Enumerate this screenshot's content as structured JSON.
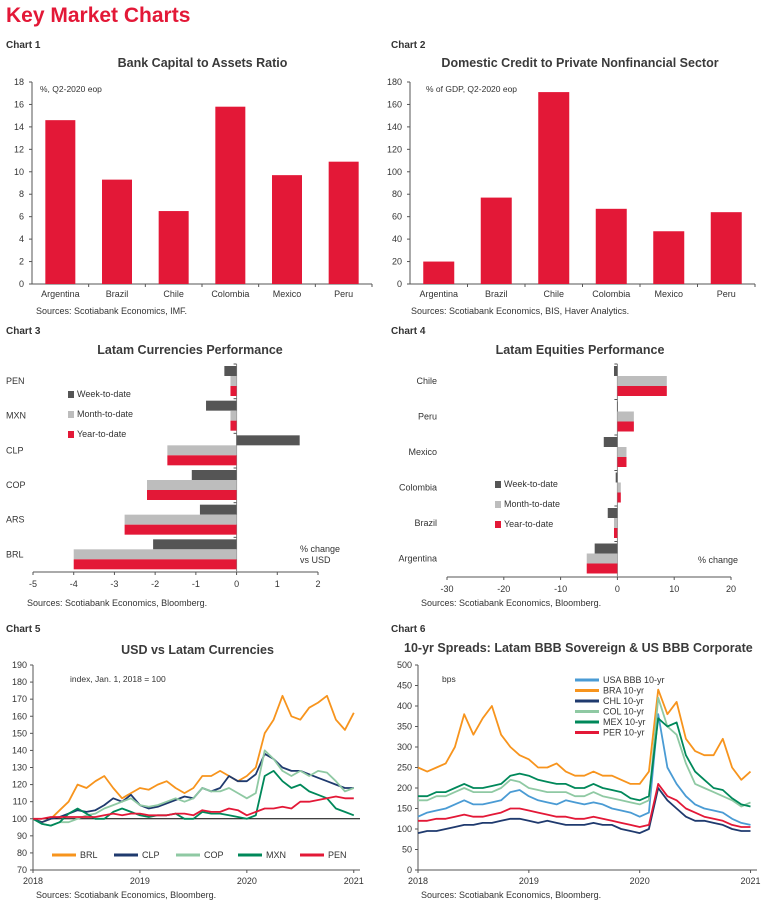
{
  "page_title": "Key Market Charts",
  "colors": {
    "red": "#e31837",
    "dark": "#555555",
    "light": "#bdbdbd",
    "orange": "#f7941d",
    "lightblue": "#4a9bd4",
    "navy": "#1f3a6e",
    "palegreen": "#8fc9a3",
    "green": "#00885a",
    "black": "#000000"
  },
  "chart_data": [
    {
      "id": "c1",
      "chart_label": "Chart 1",
      "type": "bar",
      "title": "Bank Capital to Assets Ratio",
      "annotation": "%, Q2-2020 eop",
      "source": "Sources: Scotiabank Economics, IMF.",
      "categories": [
        "Argentina",
        "Brazil",
        "Chile",
        "Colombia",
        "Mexico",
        "Peru"
      ],
      "values": [
        14.6,
        9.3,
        6.5,
        15.8,
        9.7,
        10.9
      ],
      "ylim": [
        0,
        18
      ],
      "ystep": 2,
      "yticks": [
        "0",
        "2",
        "4",
        "6",
        "8",
        "10",
        "12",
        "14",
        "16",
        "18"
      ]
    },
    {
      "id": "c2",
      "chart_label": "Chart 2",
      "type": "bar",
      "title": "Domestic Credit to Private Nonfinancial Sector",
      "annotation": "% of GDP, Q2-2020 eop",
      "source": "Sources: Scotiabank Economics, BIS, Haver Analytics.",
      "categories": [
        "Argentina",
        "Brazil",
        "Chile",
        "Colombia",
        "Mexico",
        "Peru"
      ],
      "values": [
        20,
        77,
        171,
        67,
        47,
        64
      ],
      "ylim": [
        0,
        180
      ],
      "ystep": 20,
      "yticks": [
        "0",
        "20",
        "40",
        "60",
        "80",
        "100",
        "120",
        "140",
        "160",
        "180"
      ]
    },
    {
      "id": "c3",
      "chart_label": "Chart 3",
      "type": "hbar",
      "title": "Latam Currencies Performance",
      "annotation": "% change vs USD",
      "annotation_lines": [
        "% change",
        "vs USD"
      ],
      "source": "Sources: Scotiabank Economics, Bloomberg.",
      "categories": [
        "PEN",
        "MXN",
        "CLP",
        "COP",
        "ARS",
        "BRL"
      ],
      "series": [
        {
          "name": "Week-to-date",
          "values": [
            -0.3,
            -0.75,
            1.55,
            -1.1,
            -0.9,
            -2.05
          ]
        },
        {
          "name": "Month-to-date",
          "values": [
            -0.15,
            -0.15,
            -1.7,
            -2.2,
            -2.75,
            -4.0
          ]
        },
        {
          "name": "Year-to-date",
          "values": [
            -0.15,
            -0.15,
            -1.7,
            -2.2,
            -2.75,
            -4.0
          ]
        }
      ],
      "xlim": [
        -5,
        2
      ],
      "xticks": [
        "-5",
        "-4",
        "-3",
        "-2",
        "-1",
        "0",
        "1",
        "2"
      ]
    },
    {
      "id": "c4",
      "chart_label": "Chart 4",
      "type": "hbar",
      "title": "Latam Equities Performance",
      "annotation": "% change",
      "annotation_lines": [
        "% change"
      ],
      "source": "Sources: Scotiabank Economics, Bloomberg.",
      "categories": [
        "Chile",
        "Peru",
        "Mexico",
        "Colombia",
        "Brazil",
        "Argentina"
      ],
      "series": [
        {
          "name": "Week-to-date",
          "values": [
            -0.6,
            0,
            -2.4,
            -0.3,
            -1.7,
            -4.0
          ]
        },
        {
          "name": "Month-to-date",
          "values": [
            8.7,
            2.9,
            1.6,
            0.6,
            -0.6,
            -5.4
          ]
        },
        {
          "name": "Year-to-date",
          "values": [
            8.7,
            2.9,
            1.6,
            0.6,
            -0.6,
            -5.4
          ]
        }
      ],
      "xlim": [
        -30,
        20
      ],
      "xticks": [
        "-30",
        "-20",
        "-10",
        "0",
        "10",
        "20"
      ]
    },
    {
      "id": "c5",
      "chart_label": "Chart 5",
      "type": "line",
      "title": "USD vs Latam Currencies",
      "annotation": "index, Jan. 1, 2018 = 100",
      "source": "Sources: Scotiabank Economics, Bloomberg.",
      "x_start": "2018-01",
      "x_frequency": "monthly",
      "xticks": [
        "2018",
        "2019",
        "2020",
        "2021"
      ],
      "ylim": [
        70,
        190
      ],
      "ystep": 10,
      "yticks": [
        "70",
        "80",
        "90",
        "100",
        "110",
        "120",
        "130",
        "140",
        "150",
        "160",
        "170",
        "180",
        "190"
      ],
      "reference_line": 100,
      "series": [
        {
          "name": "BRL",
          "values": [
            100,
            98,
            100,
            105,
            110,
            120,
            118,
            122,
            125,
            118,
            112,
            115,
            118,
            117,
            120,
            122,
            118,
            115,
            118,
            125,
            125,
            128,
            125,
            122,
            125,
            130,
            150,
            158,
            172,
            160,
            158,
            165,
            168,
            172,
            158,
            152,
            162
          ]
        },
        {
          "name": "CLP",
          "values": [
            100,
            98,
            100,
            101,
            103,
            105,
            104,
            105,
            108,
            112,
            110,
            114,
            108,
            106,
            107,
            109,
            111,
            113,
            112,
            118,
            116,
            118,
            125,
            122,
            122,
            126,
            138,
            135,
            130,
            128,
            128,
            126,
            124,
            122,
            120,
            118,
            118
          ]
        },
        {
          "name": "COP",
          "values": [
            100,
            97,
            96,
            98,
            98,
            100,
            102,
            103,
            106,
            108,
            110,
            112,
            108,
            107,
            108,
            110,
            112,
            110,
            112,
            118,
            116,
            116,
            118,
            115,
            112,
            115,
            140,
            135,
            128,
            125,
            128,
            125,
            128,
            127,
            122,
            116,
            118
          ]
        },
        {
          "name": "MXN",
          "values": [
            100,
            97,
            96,
            98,
            103,
            106,
            103,
            100,
            100,
            104,
            106,
            104,
            102,
            101,
            102,
            102,
            103,
            100,
            100,
            104,
            103,
            103,
            102,
            101,
            100,
            102,
            125,
            128,
            122,
            118,
            120,
            116,
            114,
            112,
            106,
            104,
            102
          ]
        },
        {
          "name": "PEN",
          "values": [
            100,
            100,
            101,
            101,
            101,
            101,
            101,
            101,
            102,
            103,
            102,
            103,
            103,
            102,
            102,
            102,
            103,
            103,
            102,
            105,
            104,
            104,
            106,
            105,
            102,
            104,
            106,
            106,
            107,
            106,
            110,
            110,
            111,
            112,
            113,
            112,
            112
          ]
        }
      ]
    },
    {
      "id": "c6",
      "chart_label": "Chart 6",
      "type": "line",
      "title": "10-yr  Spreads: Latam BBB Sovereign & US BBB Corporate",
      "annotation": "bps",
      "source": "Sources: Scotiabank Economics, Bloomberg.",
      "x_start": "2018-01",
      "x_frequency": "monthly",
      "xticks": [
        "2018",
        "2019",
        "2020",
        "2021"
      ],
      "ylim": [
        0,
        500
      ],
      "ystep": 50,
      "yticks": [
        "0",
        "50",
        "100",
        "150",
        "200",
        "250",
        "300",
        "350",
        "400",
        "450",
        "500"
      ],
      "series": [
        {
          "name": "USA BBB 10-yr",
          "values": [
            130,
            140,
            145,
            150,
            160,
            170,
            160,
            160,
            165,
            170,
            190,
            195,
            180,
            170,
            165,
            160,
            170,
            165,
            160,
            165,
            160,
            150,
            145,
            140,
            130,
            140,
            380,
            250,
            210,
            180,
            160,
            150,
            145,
            140,
            125,
            115,
            110
          ]
        },
        {
          "name": "BRA 10-yr",
          "values": [
            250,
            240,
            250,
            260,
            300,
            380,
            330,
            370,
            400,
            330,
            300,
            280,
            270,
            250,
            250,
            260,
            240,
            230,
            230,
            240,
            230,
            230,
            220,
            210,
            210,
            240,
            440,
            380,
            410,
            320,
            290,
            280,
            280,
            320,
            250,
            220,
            240
          ]
        },
        {
          "name": "CHL 10-yr",
          "values": [
            90,
            95,
            95,
            100,
            105,
            110,
            110,
            115,
            115,
            120,
            125,
            125,
            120,
            115,
            120,
            115,
            110,
            110,
            110,
            115,
            110,
            110,
            100,
            95,
            90,
            100,
            200,
            170,
            150,
            130,
            120,
            120,
            115,
            110,
            100,
            95,
            95
          ]
        },
        {
          "name": "COL 10-yr",
          "values": [
            170,
            170,
            180,
            180,
            190,
            200,
            190,
            190,
            190,
            200,
            220,
            215,
            200,
            195,
            190,
            190,
            190,
            180,
            180,
            190,
            180,
            175,
            170,
            165,
            160,
            170,
            420,
            350,
            330,
            260,
            210,
            200,
            190,
            180,
            170,
            155,
            165
          ]
        },
        {
          "name": "MEX 10-yr",
          "values": [
            180,
            180,
            190,
            190,
            200,
            210,
            200,
            200,
            205,
            210,
            230,
            235,
            230,
            220,
            215,
            210,
            210,
            200,
            200,
            210,
            200,
            195,
            190,
            175,
            170,
            180,
            370,
            350,
            360,
            280,
            240,
            220,
            200,
            195,
            175,
            160,
            155
          ]
        },
        {
          "name": "PER 10-yr",
          "values": [
            120,
            120,
            125,
            125,
            130,
            135,
            130,
            130,
            135,
            140,
            150,
            150,
            145,
            140,
            135,
            130,
            130,
            125,
            125,
            130,
            125,
            120,
            115,
            110,
            105,
            110,
            210,
            180,
            170,
            150,
            140,
            130,
            125,
            120,
            110,
            105,
            105
          ]
        }
      ]
    }
  ]
}
